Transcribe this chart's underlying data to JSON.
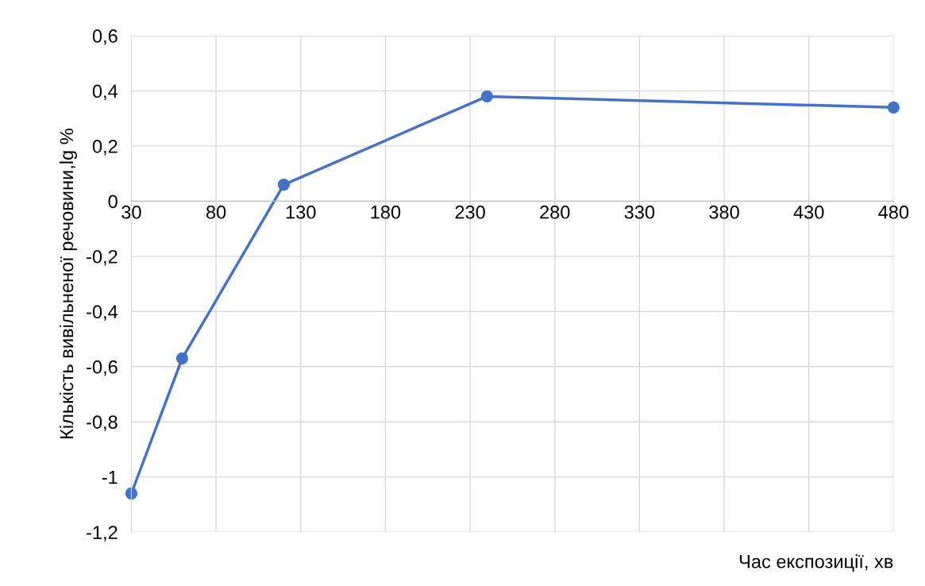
{
  "chart_data": {
    "type": "line",
    "xlabel": "Час експозиції, хв",
    "ylabel": "Кількість вивільненої речовини,lg %",
    "x": [
      30,
      60,
      120,
      240,
      480
    ],
    "series": [
      {
        "color": "#4472c4",
        "values": [
          -1.06,
          -0.57,
          0.06,
          0.38,
          0.34
        ]
      }
    ],
    "xlim": [
      30,
      480
    ],
    "xticks": [
      30,
      80,
      130,
      180,
      230,
      280,
      330,
      380,
      430,
      480
    ],
    "ylim": [
      -1.2,
      0.6
    ],
    "yticks": [
      {
        "value": -1.2,
        "label": "-1,2"
      },
      {
        "value": -1,
        "label": "-1"
      },
      {
        "value": -0.8,
        "label": "-0,8"
      },
      {
        "value": -0.6,
        "label": "-0,6"
      },
      {
        "value": -0.4,
        "label": "-0,4"
      },
      {
        "value": -0.2,
        "label": "-0,2"
      },
      {
        "value": 0,
        "label": "0"
      },
      {
        "value": 0.2,
        "label": "0,2"
      },
      {
        "value": 0.4,
        "label": "0,4"
      },
      {
        "value": 0.6,
        "label": "0,6"
      }
    ],
    "grid": true,
    "marker": "circle",
    "line_style": "solid"
  }
}
